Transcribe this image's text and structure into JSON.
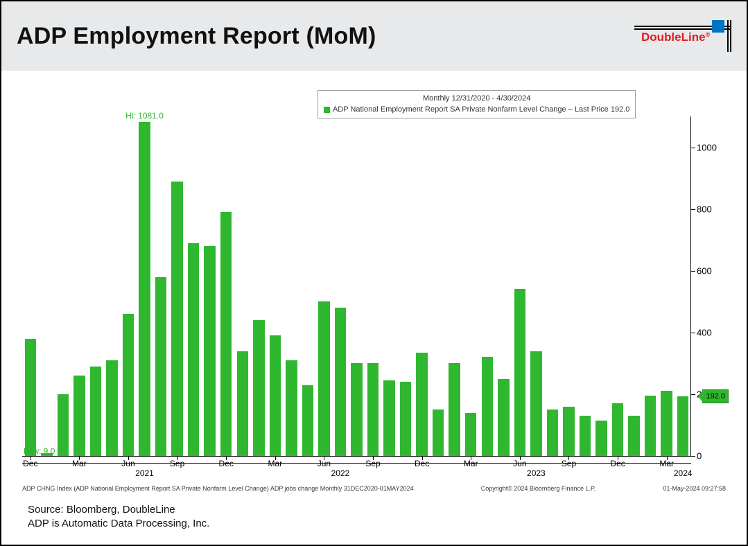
{
  "header": {
    "title": "ADP Employment Report (MoM)",
    "logo_text": "DoubleLine",
    "logo_color": "#e01c23",
    "logo_square_color": "#0074c4"
  },
  "chart": {
    "type": "bar",
    "date_range_text": "Monthly 12/31/2020 - 4/30/2024",
    "series_label": "ADP National Employment Report SA Private Nonfarm Level Change – Last Price 192.0",
    "bar_color": "#2fb72f",
    "background_color": "#ffffff",
    "axis_color": "#000000",
    "ylim": [
      0,
      1100
    ],
    "yticks": [
      0,
      200,
      400,
      600,
      800,
      1000
    ],
    "hi_label": "Hi: 1081.0",
    "low_label": "Low: 9.0",
    "last_value": 192.0,
    "last_flag_label": "192.0",
    "bars": {
      "labels": [
        "Dec20",
        "Jan21",
        "Feb21",
        "Mar21",
        "Apr21",
        "May21",
        "Jun21",
        "Jul21",
        "Aug21",
        "Sep21",
        "Oct21",
        "Nov21",
        "Dec21",
        "Jan22",
        "Feb22",
        "Mar22",
        "Apr22",
        "May22",
        "Jun22",
        "Jul22",
        "Aug22",
        "Sep22",
        "Oct22",
        "Nov22",
        "Dec22",
        "Jan23",
        "Feb23",
        "Mar23",
        "Apr23",
        "May23",
        "Jun23",
        "Jul23",
        "Aug23",
        "Sep23",
        "Oct23",
        "Nov23",
        "Dec23",
        "Jan24",
        "Feb24",
        "Mar24",
        "Apr24"
      ],
      "values": [
        380,
        9,
        200,
        260,
        290,
        310,
        460,
        1081,
        580,
        890,
        690,
        680,
        790,
        340,
        440,
        390,
        310,
        230,
        500,
        480,
        300,
        300,
        245,
        240,
        335,
        150,
        300,
        140,
        320,
        250,
        540,
        340,
        150,
        160,
        130,
        115,
        170,
        130,
        195,
        210,
        192
      ]
    },
    "x_ticks": [
      {
        "pos": 0,
        "label": "Dec",
        "type": "mon"
      },
      {
        "pos": 3,
        "label": "Mar",
        "type": "mon"
      },
      {
        "pos": 6,
        "label": "Jun",
        "type": "mon"
      },
      {
        "pos": 9,
        "label": "Sep",
        "type": "mon"
      },
      {
        "pos": 12,
        "label": "Dec",
        "type": "mon"
      },
      {
        "pos": 15,
        "label": "Mar",
        "type": "mon"
      },
      {
        "pos": 18,
        "label": "Jun",
        "type": "mon"
      },
      {
        "pos": 21,
        "label": "Sep",
        "type": "mon"
      },
      {
        "pos": 24,
        "label": "Dec",
        "type": "mon"
      },
      {
        "pos": 27,
        "label": "Mar",
        "type": "mon"
      },
      {
        "pos": 30,
        "label": "Jun",
        "type": "mon"
      },
      {
        "pos": 33,
        "label": "Sep",
        "type": "mon"
      },
      {
        "pos": 36,
        "label": "Dec",
        "type": "mon"
      },
      {
        "pos": 39,
        "label": "Mar",
        "type": "mon"
      }
    ],
    "x_year_ticks": [
      {
        "pos": 7,
        "label": "2021"
      },
      {
        "pos": 19,
        "label": "2022"
      },
      {
        "pos": 31,
        "label": "2023"
      },
      {
        "pos": 40,
        "label": "2024"
      }
    ]
  },
  "footer": {
    "left": "ADP CHNG Index (ADP National Employment Report SA Private Nonfarm Level Change) ADP jobs change  Monthly 31DEC2020-01MAY2024",
    "mid": "Copyright© 2024 Bloomberg Finance L.P.",
    "right": "01-May-2024 09:27:58"
  },
  "source": {
    "line1": "Source: Bloomberg, DoubleLine",
    "line2": "ADP is Automatic Data Processing, Inc."
  }
}
